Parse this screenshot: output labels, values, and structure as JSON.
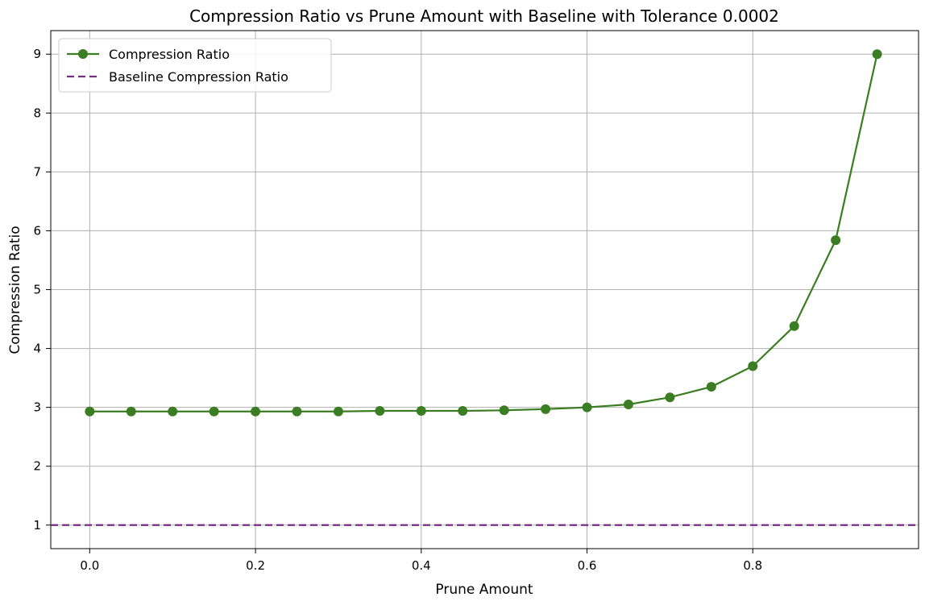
{
  "chart_data": {
    "type": "line",
    "title": "Compression Ratio vs Prune Amount with Baseline with Tolerance 0.0002",
    "xlabel": "Prune Amount",
    "ylabel": "Compression Ratio",
    "xlim": [
      -0.047,
      1.0
    ],
    "ylim": [
      0.6,
      9.4
    ],
    "x_ticks": [
      0.0,
      0.2,
      0.4,
      0.6,
      0.8
    ],
    "x_tick_labels": [
      "0.0",
      "0.2",
      "0.4",
      "0.6",
      "0.8"
    ],
    "y_ticks": [
      1,
      2,
      3,
      4,
      5,
      6,
      7,
      8,
      9
    ],
    "y_tick_labels": [
      "1",
      "2",
      "3",
      "4",
      "5",
      "6",
      "7",
      "8",
      "9"
    ],
    "grid": true,
    "legend_position": "top-left",
    "series": [
      {
        "name": "Compression Ratio",
        "color": "#3a7d22",
        "style": "solid",
        "marker": "circle",
        "x": [
          0.0,
          0.05,
          0.1,
          0.15,
          0.2,
          0.25,
          0.3,
          0.35,
          0.4,
          0.45,
          0.5,
          0.55,
          0.6,
          0.65,
          0.7,
          0.75,
          0.8,
          0.85,
          0.9,
          0.95
        ],
        "y": [
          2.93,
          2.93,
          2.93,
          2.93,
          2.93,
          2.93,
          2.93,
          2.94,
          2.94,
          2.94,
          2.95,
          2.97,
          3.0,
          3.05,
          3.17,
          3.35,
          3.7,
          4.38,
          5.84,
          9.0
        ]
      },
      {
        "name": "Baseline Compression Ratio",
        "color": "#7b2a8b",
        "style": "dashed",
        "marker": "none",
        "y_constant": 1.0
      }
    ]
  }
}
